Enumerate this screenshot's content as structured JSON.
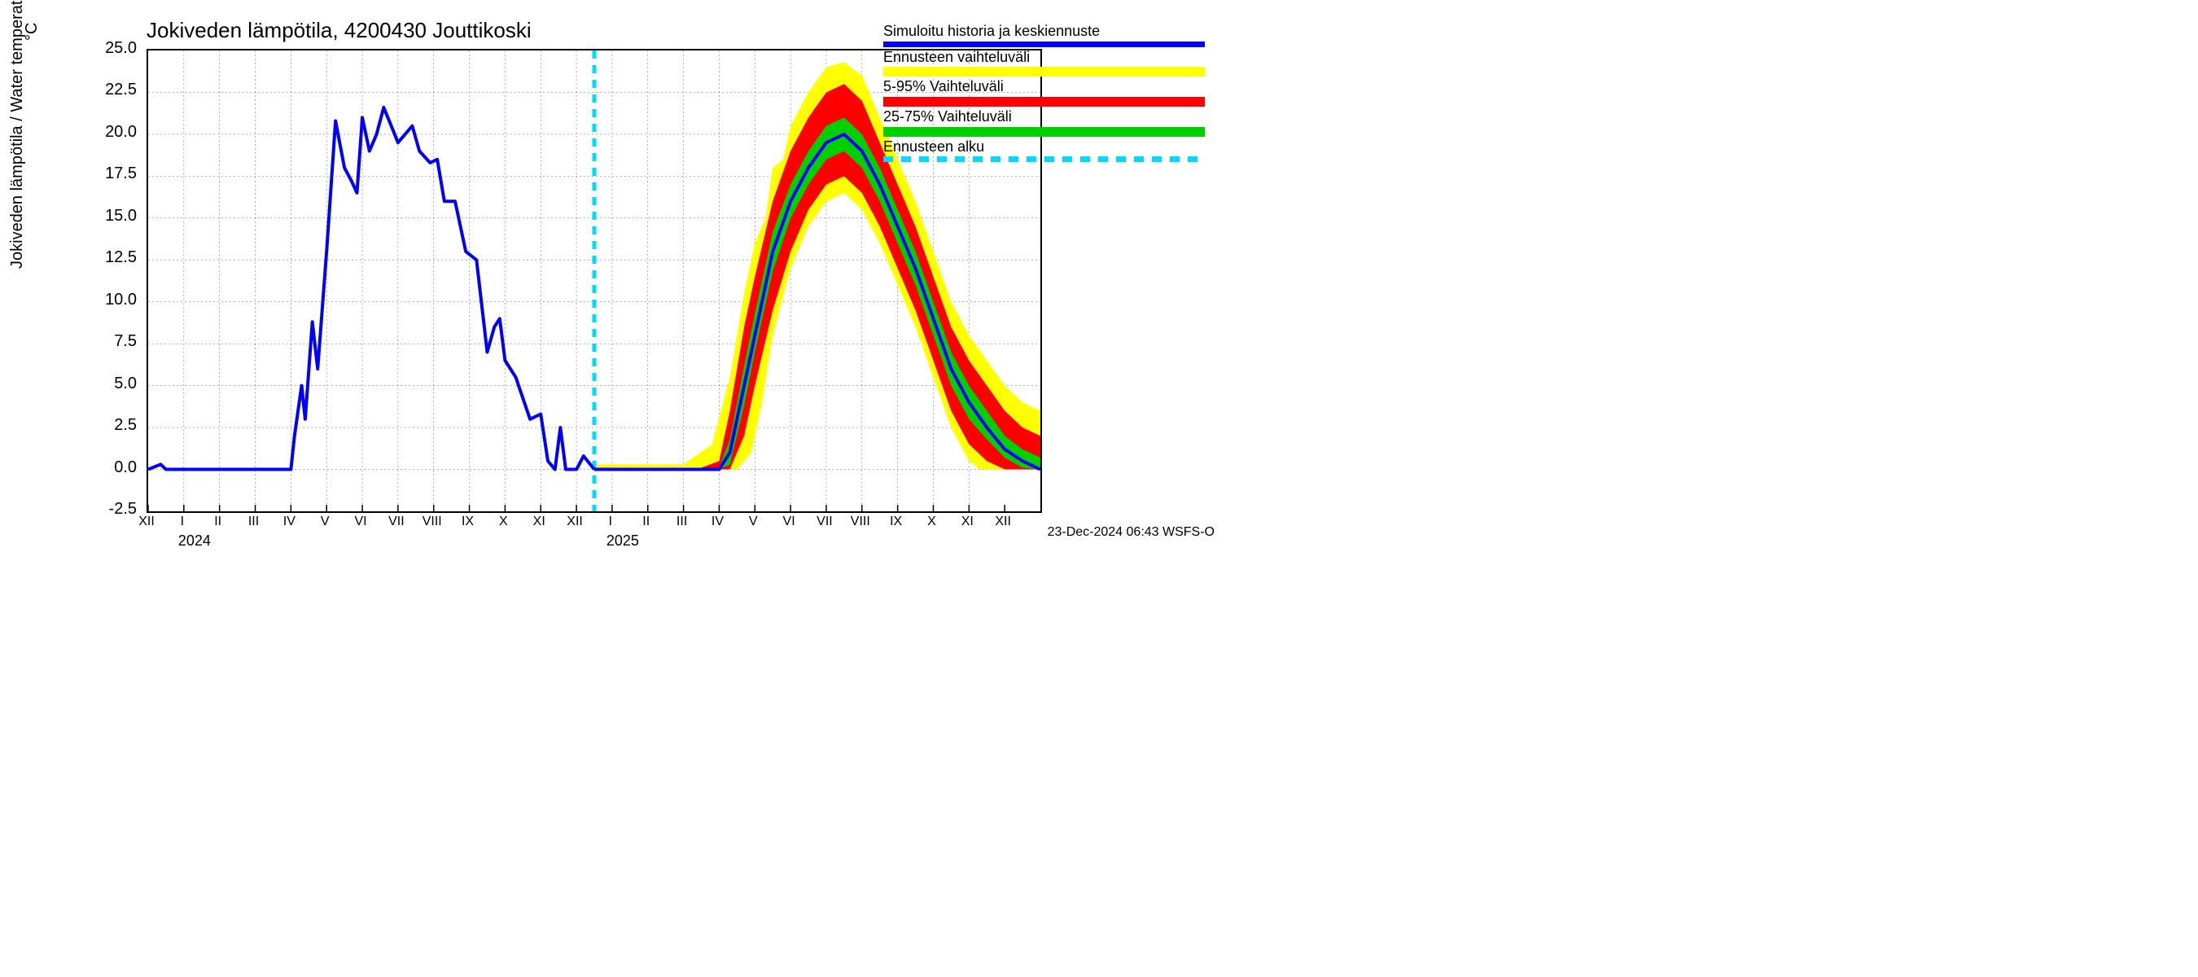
{
  "chart": {
    "type": "line_with_bands",
    "title": "Jokiveden lämpötila, 4200430 Jouttikoski",
    "ylabel": "Jokiveden lämpötila / Water temperature",
    "yunit": "°C",
    "title_fontsize": 26,
    "label_fontsize": 20,
    "tick_fontsize": 18,
    "background_color": "#ffffff",
    "grid_color": "#000000",
    "grid_dash": "2,3",
    "ylim": [
      -2.5,
      25.0
    ],
    "ytick_step": 2.5,
    "yticks": [
      -2.5,
      0.0,
      2.5,
      5.0,
      7.5,
      10.0,
      12.5,
      15.0,
      17.5,
      20.0,
      22.5,
      25.0
    ],
    "xlim_months": 26,
    "xticks_roman": [
      "XII",
      "I",
      "II",
      "III",
      "IV",
      "V",
      "VI",
      "VII",
      "VIII",
      "IX",
      "X",
      "XI",
      "XII",
      "I",
      "II",
      "III",
      "IV",
      "V",
      "VI",
      "VII",
      "VIII",
      "IX",
      "X",
      "XI",
      "XII"
    ],
    "years": [
      {
        "label": "2024",
        "at_tick_index": 1
      },
      {
        "label": "2025",
        "at_tick_index": 13
      }
    ],
    "forecast_start_tick": 12.5,
    "colors": {
      "sim_history": "#0000ff",
      "forecast_full_range": "#ffff00",
      "range_5_95": "#ff0000",
      "range_25_75": "#00d000",
      "forecast_start_line": "#00d9ff"
    },
    "line_widths": {
      "sim_history": 4,
      "forecast_start_line": 5
    },
    "legend": {
      "items": [
        {
          "label": "Simuloitu historia ja keskiennuste",
          "swatch": "#0000ff",
          "type": "line"
        },
        {
          "label": "Ennusteen vaihteluväli",
          "swatch": "#ffff00",
          "type": "band"
        },
        {
          "label": "5-95% Vaihteluväli",
          "swatch": "#ff0000",
          "type": "band"
        },
        {
          "label": "25-75% Vaihteluväli",
          "swatch": "#00d000",
          "type": "band"
        },
        {
          "label": "Ennusteen alku",
          "swatch": "#00d9ff",
          "type": "dashed"
        }
      ]
    },
    "footer": "23-Dec-2024 06:43 WSFS-O",
    "series": {
      "history": [
        {
          "x": 0.0,
          "y": 0.0
        },
        {
          "x": 0.35,
          "y": 0.3
        },
        {
          "x": 0.5,
          "y": 0.0
        },
        {
          "x": 4.0,
          "y": 0.0
        },
        {
          "x": 4.1,
          "y": 2.0
        },
        {
          "x": 4.3,
          "y": 5.0
        },
        {
          "x": 4.4,
          "y": 3.0
        },
        {
          "x": 4.6,
          "y": 8.8
        },
        {
          "x": 4.75,
          "y": 6.0
        },
        {
          "x": 5.0,
          "y": 13.0
        },
        {
          "x": 5.25,
          "y": 20.8
        },
        {
          "x": 5.5,
          "y": 18.0
        },
        {
          "x": 5.7,
          "y": 17.2
        },
        {
          "x": 5.85,
          "y": 16.5
        },
        {
          "x": 6.0,
          "y": 21.0
        },
        {
          "x": 6.2,
          "y": 19.0
        },
        {
          "x": 6.4,
          "y": 20.0
        },
        {
          "x": 6.6,
          "y": 21.6
        },
        {
          "x": 6.85,
          "y": 20.3
        },
        {
          "x": 7.0,
          "y": 19.5
        },
        {
          "x": 7.4,
          "y": 20.5
        },
        {
          "x": 7.6,
          "y": 19.0
        },
        {
          "x": 7.9,
          "y": 18.3
        },
        {
          "x": 8.1,
          "y": 18.5
        },
        {
          "x": 8.3,
          "y": 16.0
        },
        {
          "x": 8.6,
          "y": 16.0
        },
        {
          "x": 8.9,
          "y": 13.0
        },
        {
          "x": 9.2,
          "y": 12.5
        },
        {
          "x": 9.5,
          "y": 7.0
        },
        {
          "x": 9.7,
          "y": 8.5
        },
        {
          "x": 9.85,
          "y": 9.0
        },
        {
          "x": 10.0,
          "y": 6.5
        },
        {
          "x": 10.3,
          "y": 5.5
        },
        {
          "x": 10.7,
          "y": 3.0
        },
        {
          "x": 11.0,
          "y": 3.3
        },
        {
          "x": 11.2,
          "y": 0.5
        },
        {
          "x": 11.4,
          "y": 0.0
        },
        {
          "x": 11.55,
          "y": 2.5
        },
        {
          "x": 11.7,
          "y": 0.0
        },
        {
          "x": 12.0,
          "y": 0.0
        },
        {
          "x": 12.2,
          "y": 0.8
        },
        {
          "x": 12.5,
          "y": 0.0
        }
      ],
      "forecast_median": [
        {
          "x": 12.5,
          "y": 0.0
        },
        {
          "x": 16.0,
          "y": 0.0
        },
        {
          "x": 16.3,
          "y": 1.0
        },
        {
          "x": 16.7,
          "y": 5.0
        },
        {
          "x": 17.0,
          "y": 8.0
        },
        {
          "x": 17.5,
          "y": 13.0
        },
        {
          "x": 18.0,
          "y": 16.0
        },
        {
          "x": 18.5,
          "y": 18.0
        },
        {
          "x": 19.0,
          "y": 19.5
        },
        {
          "x": 19.5,
          "y": 20.0
        },
        {
          "x": 20.0,
          "y": 19.0
        },
        {
          "x": 20.5,
          "y": 17.0
        },
        {
          "x": 21.0,
          "y": 14.5
        },
        {
          "x": 21.5,
          "y": 12.0
        },
        {
          "x": 22.0,
          "y": 9.0
        },
        {
          "x": 22.5,
          "y": 6.0
        },
        {
          "x": 23.0,
          "y": 4.0
        },
        {
          "x": 23.5,
          "y": 2.5
        },
        {
          "x": 24.0,
          "y": 1.2
        },
        {
          "x": 24.5,
          "y": 0.5
        },
        {
          "x": 25.0,
          "y": 0.0
        }
      ],
      "band_25_75": {
        "upper": [
          {
            "x": 12.5,
            "y": 0.0
          },
          {
            "x": 16.0,
            "y": 0.1
          },
          {
            "x": 16.3,
            "y": 1.8
          },
          {
            "x": 16.7,
            "y": 6.2
          },
          {
            "x": 17.0,
            "y": 9.3
          },
          {
            "x": 17.5,
            "y": 14.2
          },
          {
            "x": 18.0,
            "y": 17.0
          },
          {
            "x": 18.5,
            "y": 19.0
          },
          {
            "x": 19.0,
            "y": 20.5
          },
          {
            "x": 19.5,
            "y": 21.0
          },
          {
            "x": 20.0,
            "y": 20.0
          },
          {
            "x": 20.5,
            "y": 18.0
          },
          {
            "x": 21.0,
            "y": 15.5
          },
          {
            "x": 21.5,
            "y": 13.0
          },
          {
            "x": 22.0,
            "y": 10.0
          },
          {
            "x": 22.5,
            "y": 7.0
          },
          {
            "x": 23.0,
            "y": 5.0
          },
          {
            "x": 23.5,
            "y": 3.5
          },
          {
            "x": 24.0,
            "y": 2.0
          },
          {
            "x": 24.5,
            "y": 1.2
          },
          {
            "x": 25.0,
            "y": 0.7
          }
        ],
        "lower": [
          {
            "x": 12.5,
            "y": 0.0
          },
          {
            "x": 16.0,
            "y": 0.0
          },
          {
            "x": 16.3,
            "y": 0.3
          },
          {
            "x": 16.7,
            "y": 3.8
          },
          {
            "x": 17.0,
            "y": 7.0
          },
          {
            "x": 17.5,
            "y": 11.8
          },
          {
            "x": 18.0,
            "y": 15.0
          },
          {
            "x": 18.5,
            "y": 17.0
          },
          {
            "x": 19.0,
            "y": 18.5
          },
          {
            "x": 19.5,
            "y": 19.0
          },
          {
            "x": 20.0,
            "y": 18.0
          },
          {
            "x": 20.5,
            "y": 16.0
          },
          {
            "x": 21.0,
            "y": 13.5
          },
          {
            "x": 21.5,
            "y": 11.0
          },
          {
            "x": 22.0,
            "y": 8.0
          },
          {
            "x": 22.5,
            "y": 5.0
          },
          {
            "x": 23.0,
            "y": 3.0
          },
          {
            "x": 23.5,
            "y": 1.8
          },
          {
            "x": 24.0,
            "y": 0.7
          },
          {
            "x": 24.5,
            "y": 0.1
          },
          {
            "x": 25.0,
            "y": 0.0
          }
        ]
      },
      "band_5_95": {
        "upper": [
          {
            "x": 12.5,
            "y": 0.1
          },
          {
            "x": 15.5,
            "y": 0.1
          },
          {
            "x": 16.0,
            "y": 0.5
          },
          {
            "x": 16.3,
            "y": 3.5
          },
          {
            "x": 16.7,
            "y": 8.5
          },
          {
            "x": 17.0,
            "y": 11.5
          },
          {
            "x": 17.5,
            "y": 16.0
          },
          {
            "x": 18.0,
            "y": 19.0
          },
          {
            "x": 18.5,
            "y": 21.0
          },
          {
            "x": 19.0,
            "y": 22.5
          },
          {
            "x": 19.5,
            "y": 23.0
          },
          {
            "x": 20.0,
            "y": 22.0
          },
          {
            "x": 20.5,
            "y": 19.5
          },
          {
            "x": 21.0,
            "y": 17.0
          },
          {
            "x": 21.5,
            "y": 14.5
          },
          {
            "x": 22.0,
            "y": 11.5
          },
          {
            "x": 22.5,
            "y": 8.5
          },
          {
            "x": 23.0,
            "y": 6.5
          },
          {
            "x": 23.5,
            "y": 5.0
          },
          {
            "x": 24.0,
            "y": 3.5
          },
          {
            "x": 24.5,
            "y": 2.5
          },
          {
            "x": 25.0,
            "y": 2.0
          }
        ],
        "lower": [
          {
            "x": 12.5,
            "y": 0.0
          },
          {
            "x": 16.3,
            "y": 0.0
          },
          {
            "x": 16.7,
            "y": 2.0
          },
          {
            "x": 17.0,
            "y": 5.0
          },
          {
            "x": 17.5,
            "y": 9.5
          },
          {
            "x": 18.0,
            "y": 13.0
          },
          {
            "x": 18.5,
            "y": 15.5
          },
          {
            "x": 19.0,
            "y": 17.0
          },
          {
            "x": 19.5,
            "y": 17.5
          },
          {
            "x": 20.0,
            "y": 16.5
          },
          {
            "x": 20.5,
            "y": 14.5
          },
          {
            "x": 21.0,
            "y": 12.0
          },
          {
            "x": 21.5,
            "y": 9.5
          },
          {
            "x": 22.0,
            "y": 6.5
          },
          {
            "x": 22.5,
            "y": 3.5
          },
          {
            "x": 23.0,
            "y": 1.5
          },
          {
            "x": 23.5,
            "y": 0.5
          },
          {
            "x": 24.0,
            "y": 0.0
          },
          {
            "x": 25.0,
            "y": 0.0
          }
        ]
      },
      "band_full": {
        "upper": [
          {
            "x": 12.5,
            "y": 0.3
          },
          {
            "x": 15.0,
            "y": 0.3
          },
          {
            "x": 15.8,
            "y": 1.5
          },
          {
            "x": 16.3,
            "y": 5.5
          },
          {
            "x": 16.7,
            "y": 10.5
          },
          {
            "x": 17.0,
            "y": 13.5
          },
          {
            "x": 17.3,
            "y": 15.0
          },
          {
            "x": 17.5,
            "y": 18.0
          },
          {
            "x": 17.8,
            "y": 18.5
          },
          {
            "x": 18.0,
            "y": 20.5
          },
          {
            "x": 18.5,
            "y": 22.5
          },
          {
            "x": 19.0,
            "y": 24.0
          },
          {
            "x": 19.5,
            "y": 24.3
          },
          {
            "x": 20.0,
            "y": 23.5
          },
          {
            "x": 20.5,
            "y": 21.0
          },
          {
            "x": 21.0,
            "y": 18.5
          },
          {
            "x": 21.5,
            "y": 16.0
          },
          {
            "x": 22.0,
            "y": 13.0
          },
          {
            "x": 22.5,
            "y": 10.0
          },
          {
            "x": 23.0,
            "y": 8.0
          },
          {
            "x": 23.5,
            "y": 6.5
          },
          {
            "x": 24.0,
            "y": 5.0
          },
          {
            "x": 24.5,
            "y": 4.0
          },
          {
            "x": 25.0,
            "y": 3.5
          }
        ],
        "lower": [
          {
            "x": 12.5,
            "y": 0.0
          },
          {
            "x": 16.5,
            "y": 0.0
          },
          {
            "x": 16.9,
            "y": 1.0
          },
          {
            "x": 17.2,
            "y": 4.0
          },
          {
            "x": 17.5,
            "y": 8.0
          },
          {
            "x": 18.0,
            "y": 12.0
          },
          {
            "x": 18.5,
            "y": 14.5
          },
          {
            "x": 19.0,
            "y": 16.0
          },
          {
            "x": 19.5,
            "y": 16.5
          },
          {
            "x": 20.0,
            "y": 15.5
          },
          {
            "x": 20.5,
            "y": 13.5
          },
          {
            "x": 21.0,
            "y": 11.0
          },
          {
            "x": 21.5,
            "y": 8.5
          },
          {
            "x": 22.0,
            "y": 5.5
          },
          {
            "x": 22.5,
            "y": 2.5
          },
          {
            "x": 23.0,
            "y": 0.5
          },
          {
            "x": 23.3,
            "y": 0.0
          },
          {
            "x": 25.0,
            "y": 0.0
          }
        ]
      }
    }
  }
}
